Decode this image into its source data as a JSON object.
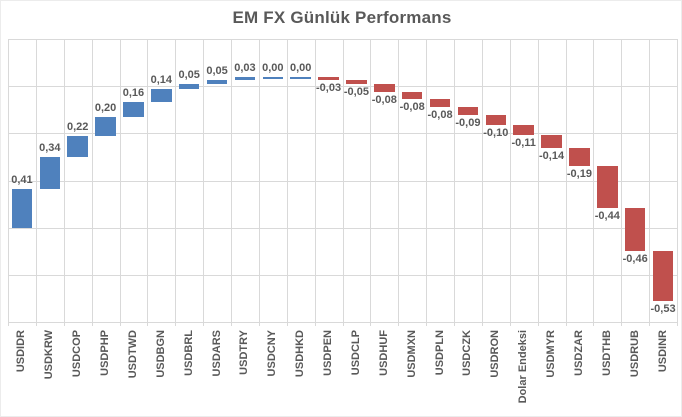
{
  "title": "EM FX Günlük Performans",
  "chart_data": {
    "type": "bar",
    "variant": "waterfall",
    "title": "EM FX Günlük Performans",
    "xlabel": "",
    "ylabel": "",
    "grid": true,
    "legend": false,
    "ylim": [
      -1.0,
      2.0
    ],
    "gridline_count": 7,
    "categories": [
      "USDIDR",
      "USDKRW",
      "USDCOP",
      "USDPHP",
      "USDTWD",
      "USDBGN",
      "USDBRL",
      "USDARS",
      "USDTRY",
      "USDCNY",
      "USDHKD",
      "USDPEN",
      "USDCLP",
      "USDHUF",
      "USDMXN",
      "USDPLN",
      "USDCZK",
      "USDRON",
      "Dolar Endeksi",
      "USDMYR",
      "USDZAR",
      "USDTHB",
      "USDRUB",
      "USDINR"
    ],
    "values": [
      0.41,
      0.34,
      0.22,
      0.2,
      0.16,
      0.14,
      0.05,
      0.05,
      0.03,
      0.0,
      0.0,
      -0.03,
      -0.05,
      -0.08,
      -0.08,
      -0.08,
      -0.09,
      -0.1,
      -0.11,
      -0.14,
      -0.19,
      -0.44,
      -0.46,
      -0.53
    ],
    "value_labels": [
      "0,41",
      "0,34",
      "0,22",
      "0,20",
      "0,16",
      "0,14",
      "0,05",
      "0,05",
      "0,03",
      "0,00",
      "0,00",
      "-0,03",
      "-0,05",
      "-0,08",
      "-0,08",
      "-0,08",
      "-0,09",
      "-0,10",
      "-0,11",
      "-0,14",
      "-0,19",
      "-0,44",
      "-0,46",
      "-0,53"
    ],
    "positive_color": "#4F81BD",
    "negative_color": "#C0504D",
    "label_color": "#595959",
    "gridline_color": "#D9D9D9"
  }
}
